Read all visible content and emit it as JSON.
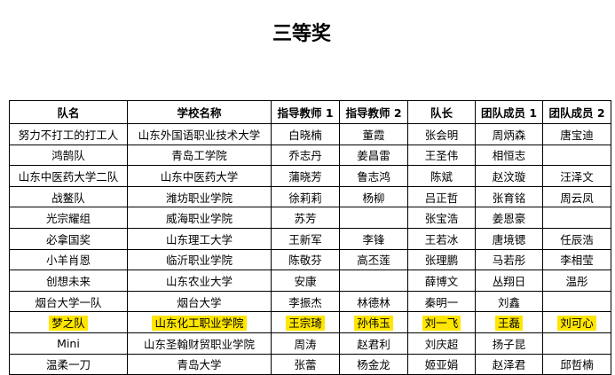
{
  "header": {
    "title": "三等奖"
  },
  "table": {
    "columns": [
      "队名",
      "学校名称",
      "指导教师 1",
      "指导教师 2",
      "队长",
      "团队成员 1",
      "团队成员 2"
    ],
    "rows": [
      [
        "努力不打工的打工人",
        "山东外国语职业技术大学",
        "白晓楠",
        "董霞",
        "张会明",
        "周炳森",
        "唐宝迪"
      ],
      [
        "鸿鹄队",
        "青岛工学院",
        "乔志丹",
        "姜昌雷",
        "王圣伟",
        "相恒志",
        null
      ],
      [
        "山东中医药大学二队",
        "山东中医药大学",
        "蒲晓芳",
        "鲁志鸿",
        "陈斌",
        "赵汶璇",
        "汪泽文"
      ],
      [
        "战鳌队",
        "潍坊职业学院",
        "徐莉莉",
        "杨柳",
        "吕正哲",
        "张育铭",
        "周云凤"
      ],
      [
        "光宗耀组",
        "威海职业学院",
        "苏芳",
        null,
        "张宝浩",
        "姜恩豪",
        null
      ],
      [
        "必拿国奖",
        "山东理工大学",
        "王新军",
        "李锋",
        "王若冰",
        "唐境锶",
        "任辰浩"
      ],
      [
        "小羊肖恩",
        "临沂职业学院",
        "陈敬芬",
        "高丕莲",
        "张理鹏",
        "马若彤",
        "李相莹"
      ],
      [
        "创想未来",
        "山东农业大学",
        "安康",
        null,
        "薛博文",
        "丛翔日",
        "温彤"
      ],
      [
        "烟台大学一队",
        "烟台大学",
        "李振杰",
        "林德林",
        "秦明一",
        "刘鑫",
        null
      ],
      [
        "梦之队",
        "山东化工职业学院",
        "王宗琦",
        "孙伟玉",
        "刘一飞",
        "王磊",
        "刘可心"
      ],
      [
        "Mini",
        "山东圣翰财贸职业学院",
        "周涛",
        "赵君利",
        "刘庆超",
        "扬子昆",
        null
      ],
      [
        "温柔一刀",
        "青岛大学",
        "张蕾",
        "杨金龙",
        "姬亚娟",
        "赵泽君",
        "邱哲楠"
      ]
    ]
  }
}
